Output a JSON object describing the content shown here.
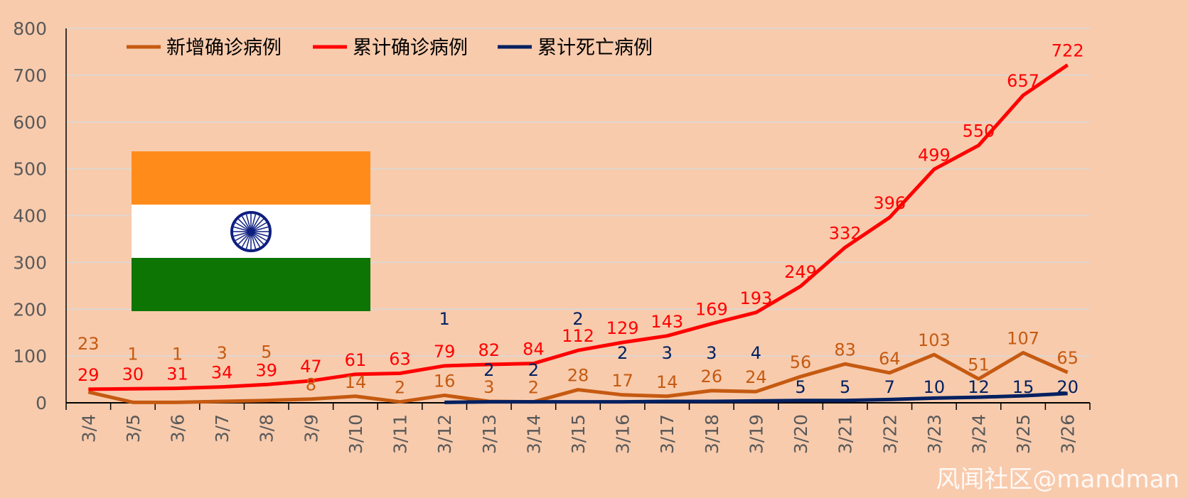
{
  "chart_data": {
    "type": "line",
    "title": "",
    "xlabel": "",
    "ylabel": "",
    "ylim": [
      0,
      800
    ],
    "yticks": [
      0,
      100,
      200,
      300,
      400,
      500,
      600,
      700,
      800
    ],
    "grid": true,
    "legend_position": "top",
    "categories": [
      "3/4",
      "3/5",
      "3/6",
      "3/7",
      "3/8",
      "3/9",
      "3/10",
      "3/11",
      "3/12",
      "3/13",
      "3/14",
      "3/15",
      "3/16",
      "3/17",
      "3/18",
      "3/19",
      "3/20",
      "3/21",
      "3/22",
      "3/23",
      "3/24",
      "3/25",
      "3/26"
    ],
    "series": [
      {
        "name": "新增确诊病例",
        "color": "#c55a11",
        "values": [
          23,
          1,
          1,
          3,
          5,
          8,
          14,
          2,
          16,
          3,
          2,
          28,
          17,
          14,
          26,
          24,
          56,
          83,
          64,
          103,
          51,
          107,
          65
        ]
      },
      {
        "name": "累计确诊病例",
        "color": "#ff0000",
        "values": [
          29,
          30,
          31,
          34,
          39,
          47,
          61,
          63,
          79,
          82,
          84,
          112,
          129,
          143,
          169,
          193,
          249,
          332,
          396,
          499,
          550,
          657,
          722
        ]
      },
      {
        "name": "累计死亡病例",
        "color": "#002060",
        "values": [
          null,
          null,
          null,
          null,
          null,
          null,
          null,
          null,
          1,
          2,
          2,
          2,
          2,
          3,
          3,
          4,
          5,
          5,
          7,
          10,
          12,
          15,
          20
        ]
      }
    ]
  },
  "flag": {
    "name": "India",
    "colors": [
      "#ff8c1a",
      "#ffffff",
      "#0d7504",
      "#0f1f80"
    ]
  },
  "watermark": "风闻社区@mandman"
}
